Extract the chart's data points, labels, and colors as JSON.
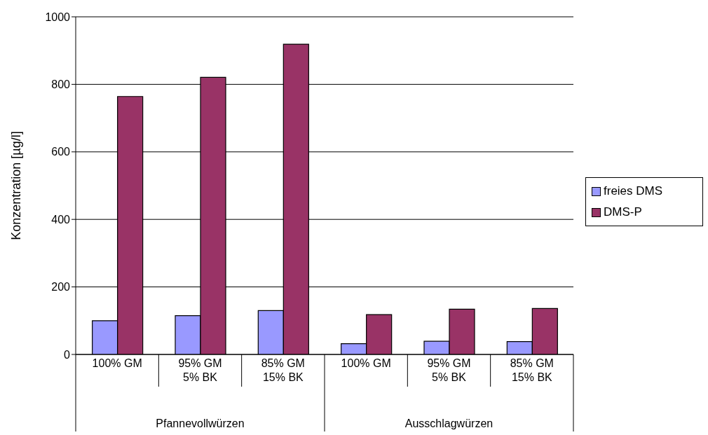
{
  "chart_data": {
    "type": "bar",
    "ylabel": "Konzentration [µg/l]",
    "categories": [
      "100% GM",
      "95% GM\n5% BK",
      "85% GM\n15% BK",
      "100% GM",
      "95% GM\n5% BK",
      "85% GM\n15% BK"
    ],
    "series": [
      {
        "name": "freies DMS",
        "color": "#9999ff",
        "values": [
          100,
          115,
          130,
          32,
          39,
          38
        ]
      },
      {
        "name": "DMS-P",
        "color": "#993366",
        "values": [
          764,
          821,
          919,
          118,
          134,
          136
        ]
      }
    ],
    "annotations": [
      "Pfannevollwürzen",
      "Ausschlagwürzen"
    ],
    "ylim": [
      0,
      1000
    ],
    "yticks": [
      0,
      200,
      400,
      600,
      800,
      1000
    ],
    "grid": "y",
    "legend": "right"
  }
}
